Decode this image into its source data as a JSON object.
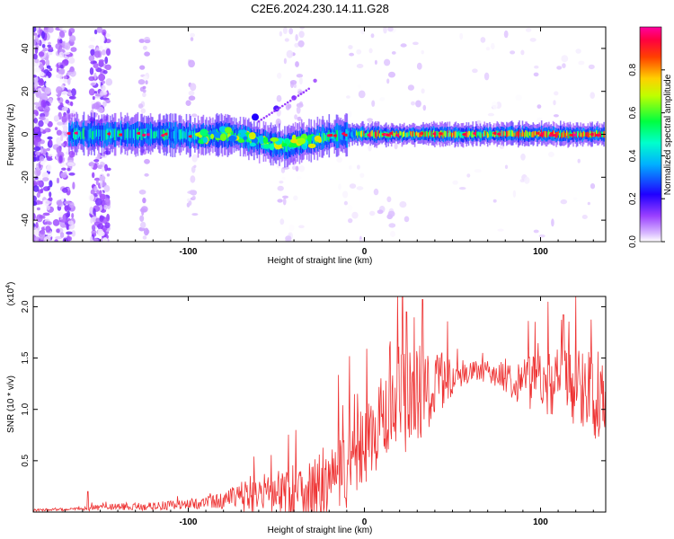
{
  "figure_title": "C2E6.2024.230.14.11.G28",
  "chart_data": [
    {
      "type": "heatmap",
      "title": "C2E6.2024.230.14.11.G28",
      "xlabel": "Height of straight line (km)",
      "ylabel": "Frequency (Hz)",
      "xlim": [
        -188,
        137
      ],
      "ylim": [
        -50,
        50
      ],
      "x_ticks": [
        -100,
        0,
        100
      ],
      "y_ticks": [
        -40,
        -20,
        0,
        20,
        40
      ],
      "colorbar": {
        "label": "Normalized spectral amplitude",
        "range": [
          0,
          1
        ],
        "ticks": [
          "0.0",
          "0.2",
          "0.4",
          "0.6",
          "0.8"
        ],
        "tick_values": [
          0.0,
          0.2,
          0.4,
          0.6,
          0.8
        ],
        "colors": [
          "#ffffff",
          "#c080ff",
          "#7f00ff",
          "#0000ff",
          "#00ffff",
          "#00ff00",
          "#ffff00",
          "#ff8000",
          "#ff0000",
          "#ff00ff"
        ]
      },
      "ridge": {
        "description_points_x": [
          -170,
          -150,
          -130,
          -110,
          -90,
          -80,
          -70,
          -60,
          -50,
          -45,
          -40,
          -30,
          -20,
          -10,
          0,
          20,
          40,
          60,
          80,
          100,
          120,
          135
        ],
        "description_points_y": [
          0,
          0,
          0,
          0,
          -1,
          0,
          -1,
          -3,
          -5,
          -6,
          -4,
          -3,
          -1,
          0,
          0,
          0,
          0,
          0,
          0,
          0,
          0,
          0
        ]
      },
      "branch": {
        "x": [
          -62,
          -50,
          -40,
          -28
        ],
        "y": [
          8,
          12,
          17,
          25
        ]
      }
    },
    {
      "type": "line",
      "xlabel": "Height of straight line (km)",
      "ylabel": "SNR (10 * v/v)",
      "y_multiplier_label": "(x10^4)",
      "xlim": [
        -188,
        137
      ],
      "ylim": [
        0,
        2.1
      ],
      "x_ticks": [
        -100,
        0,
        100
      ],
      "y_ticks": [
        0.5,
        1.0,
        1.5,
        2.0
      ],
      "y_tick_labels": [
        "0.5",
        "1.0",
        "1.5",
        "2.0"
      ],
      "series": [
        {
          "name": "SNR",
          "color": "#ee3333",
          "envelope_x": [
            -188,
            -160,
            -150,
            -120,
            -100,
            -90,
            -80,
            -70,
            -65,
            -60,
            -55,
            -50,
            -40,
            -30,
            -20,
            -10,
            -5,
            0,
            5,
            10,
            15,
            20,
            25,
            30,
            35,
            40,
            50,
            60,
            70,
            80,
            90,
            100,
            110,
            120,
            130,
            137
          ],
          "envelope_base": [
            0.02,
            0.03,
            0.05,
            0.06,
            0.08,
            0.1,
            0.12,
            0.16,
            0.18,
            0.2,
            0.18,
            0.2,
            0.22,
            0.24,
            0.3,
            0.45,
            0.55,
            0.7,
            0.8,
            0.9,
            1.0,
            1.1,
            1.15,
            1.2,
            1.25,
            1.28,
            1.33,
            1.38,
            1.38,
            1.33,
            1.3,
            1.3,
            1.3,
            1.28,
            1.22,
            1.1
          ],
          "envelope_amp": [
            0.01,
            0.02,
            0.03,
            0.04,
            0.05,
            0.06,
            0.08,
            0.15,
            0.22,
            0.25,
            0.2,
            0.22,
            0.3,
            0.35,
            0.35,
            0.4,
            0.4,
            0.42,
            0.4,
            0.4,
            0.45,
            0.5,
            0.55,
            0.55,
            0.45,
            0.35,
            0.18,
            0.1,
            0.1,
            0.15,
            0.25,
            0.3,
            0.35,
            0.4,
            0.45,
            0.4
          ],
          "peaks": [
            {
              "x": -157,
              "y": 0.2
            },
            {
              "x": 33,
              "y": 2.07
            },
            {
              "x": 24,
              "y": 1.95
            },
            {
              "x": 113,
              "y": 1.92
            }
          ]
        }
      ]
    }
  ]
}
